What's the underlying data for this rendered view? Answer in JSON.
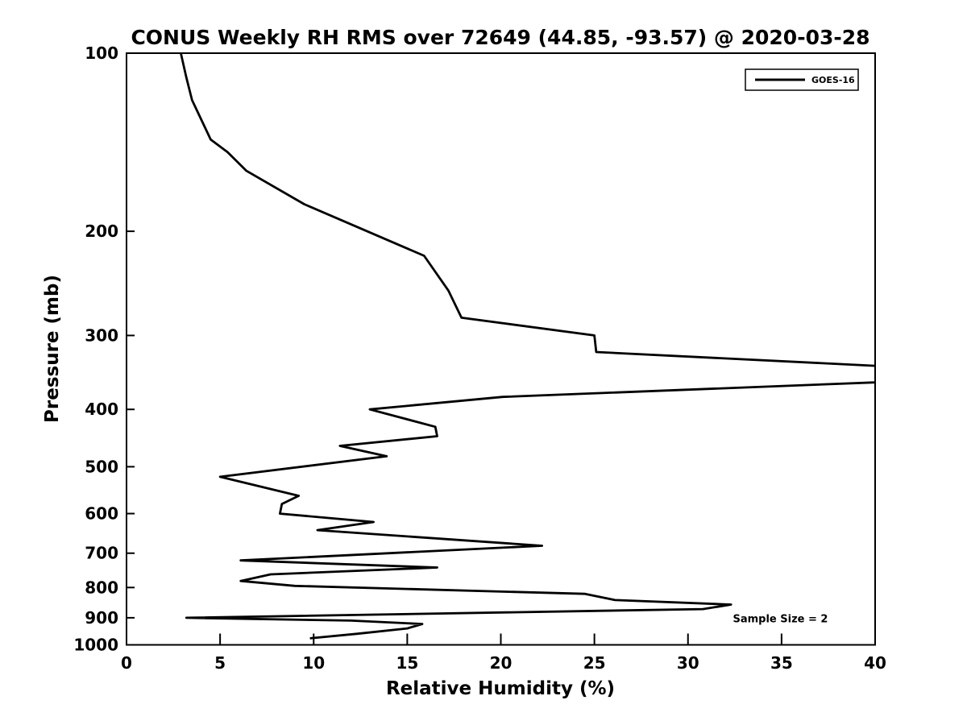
{
  "title": "CONUS Weekly RH RMS over 72649 (44.85, -93.57) @ 2020-03-28",
  "chart_data": {
    "type": "line",
    "title": "CONUS Weekly RH RMS over 72649 (44.85, -93.57) @ 2020-03-28",
    "xlabel": "Relative Humidity (%)",
    "ylabel": "Pressure (mb)",
    "xlim": [
      0,
      40
    ],
    "ylim": [
      100,
      1000
    ],
    "y_scale": "log",
    "y_inverted": true,
    "x_ticks": [
      0,
      5,
      10,
      15,
      20,
      25,
      30,
      35,
      40
    ],
    "y_ticks": [
      100,
      200,
      300,
      400,
      500,
      600,
      700,
      800,
      900,
      1000
    ],
    "grid": false,
    "line_color": "#000000",
    "line_width": 2.8,
    "legend": {
      "position": "upper right",
      "entries": [
        {
          "label": "GOES-16",
          "color": "#000000"
        }
      ]
    },
    "annotation": {
      "text": "Sample Size = 2",
      "rh": 32.4,
      "pressure": 902
    },
    "series": [
      {
        "name": "GOES-16",
        "color": "#000000",
        "note": "points are [pressure_mb, rh_percent]; the 350 mb value exceeds xlim and is clipped at RH=40 in the drawing",
        "points_pressure_rh": [
          [
            100,
            2.9
          ],
          [
            110,
            3.2
          ],
          [
            120,
            3.5
          ],
          [
            140,
            4.5
          ],
          [
            147,
            5.4
          ],
          [
            158,
            6.4
          ],
          [
            180,
            9.5
          ],
          [
            220,
            15.9
          ],
          [
            252,
            17.2
          ],
          [
            280,
            17.9
          ],
          [
            300,
            25.0
          ],
          [
            320,
            25.1
          ],
          [
            350,
            50.0
          ],
          [
            381,
            20.1
          ],
          [
            400,
            13.0
          ],
          [
            428,
            16.5
          ],
          [
            444,
            16.6
          ],
          [
            461,
            11.4
          ],
          [
            480,
            13.9
          ],
          [
            520,
            5.0
          ],
          [
            560,
            9.2
          ],
          [
            578,
            8.3
          ],
          [
            600,
            8.2
          ],
          [
            620,
            13.2
          ],
          [
            640,
            10.2
          ],
          [
            680,
            22.2
          ],
          [
            720,
            6.1
          ],
          [
            740,
            16.6
          ],
          [
            760,
            7.7
          ],
          [
            780,
            6.1
          ],
          [
            795,
            9.0
          ],
          [
            820,
            24.5
          ],
          [
            840,
            26.1
          ],
          [
            855,
            32.3
          ],
          [
            870,
            30.8
          ],
          [
            900,
            3.2
          ],
          [
            910,
            12.0
          ],
          [
            922,
            15.8
          ],
          [
            938,
            15.0
          ],
          [
            958,
            12.3
          ],
          [
            975,
            9.8
          ]
        ]
      }
    ]
  }
}
